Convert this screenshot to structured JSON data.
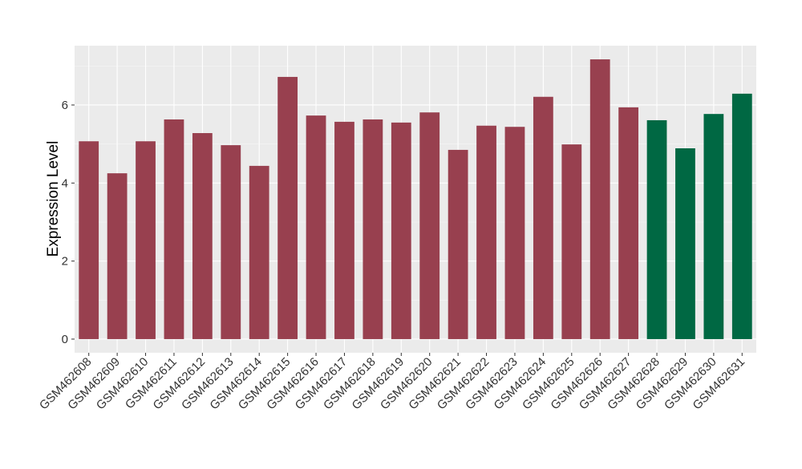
{
  "chart_data": {
    "type": "bar",
    "y_label": "Expression Level",
    "categories": [
      "GSM462608",
      "GSM462609",
      "GSM462610",
      "GSM462611",
      "GSM462612",
      "GSM462613",
      "GSM462614",
      "GSM462615",
      "GSM462616",
      "GSM462617",
      "GSM462618",
      "GSM462619",
      "GSM462620",
      "GSM462621",
      "GSM462622",
      "GSM462623",
      "GSM462624",
      "GSM462625",
      "GSM462626",
      "GSM462627",
      "GSM462628",
      "GSM462629",
      "GSM462630",
      "GSM462631"
    ],
    "values": [
      5.07,
      4.25,
      5.07,
      5.63,
      5.28,
      4.97,
      4.44,
      6.72,
      5.73,
      5.57,
      5.63,
      5.55,
      5.81,
      4.85,
      5.47,
      5.44,
      6.21,
      4.99,
      7.17,
      5.94,
      5.61,
      4.89,
      5.77,
      6.29
    ],
    "colors": [
      "#98404f",
      "#98404f",
      "#98404f",
      "#98404f",
      "#98404f",
      "#98404f",
      "#98404f",
      "#98404f",
      "#98404f",
      "#98404f",
      "#98404f",
      "#98404f",
      "#98404f",
      "#98404f",
      "#98404f",
      "#98404f",
      "#98404f",
      "#98404f",
      "#98404f",
      "#98404f",
      "#006843",
      "#006843",
      "#006843",
      "#006843"
    ],
    "ylim": [
      -0.35,
      7.52
    ],
    "yticks": [
      0,
      2,
      4,
      6
    ],
    "grid": true
  }
}
